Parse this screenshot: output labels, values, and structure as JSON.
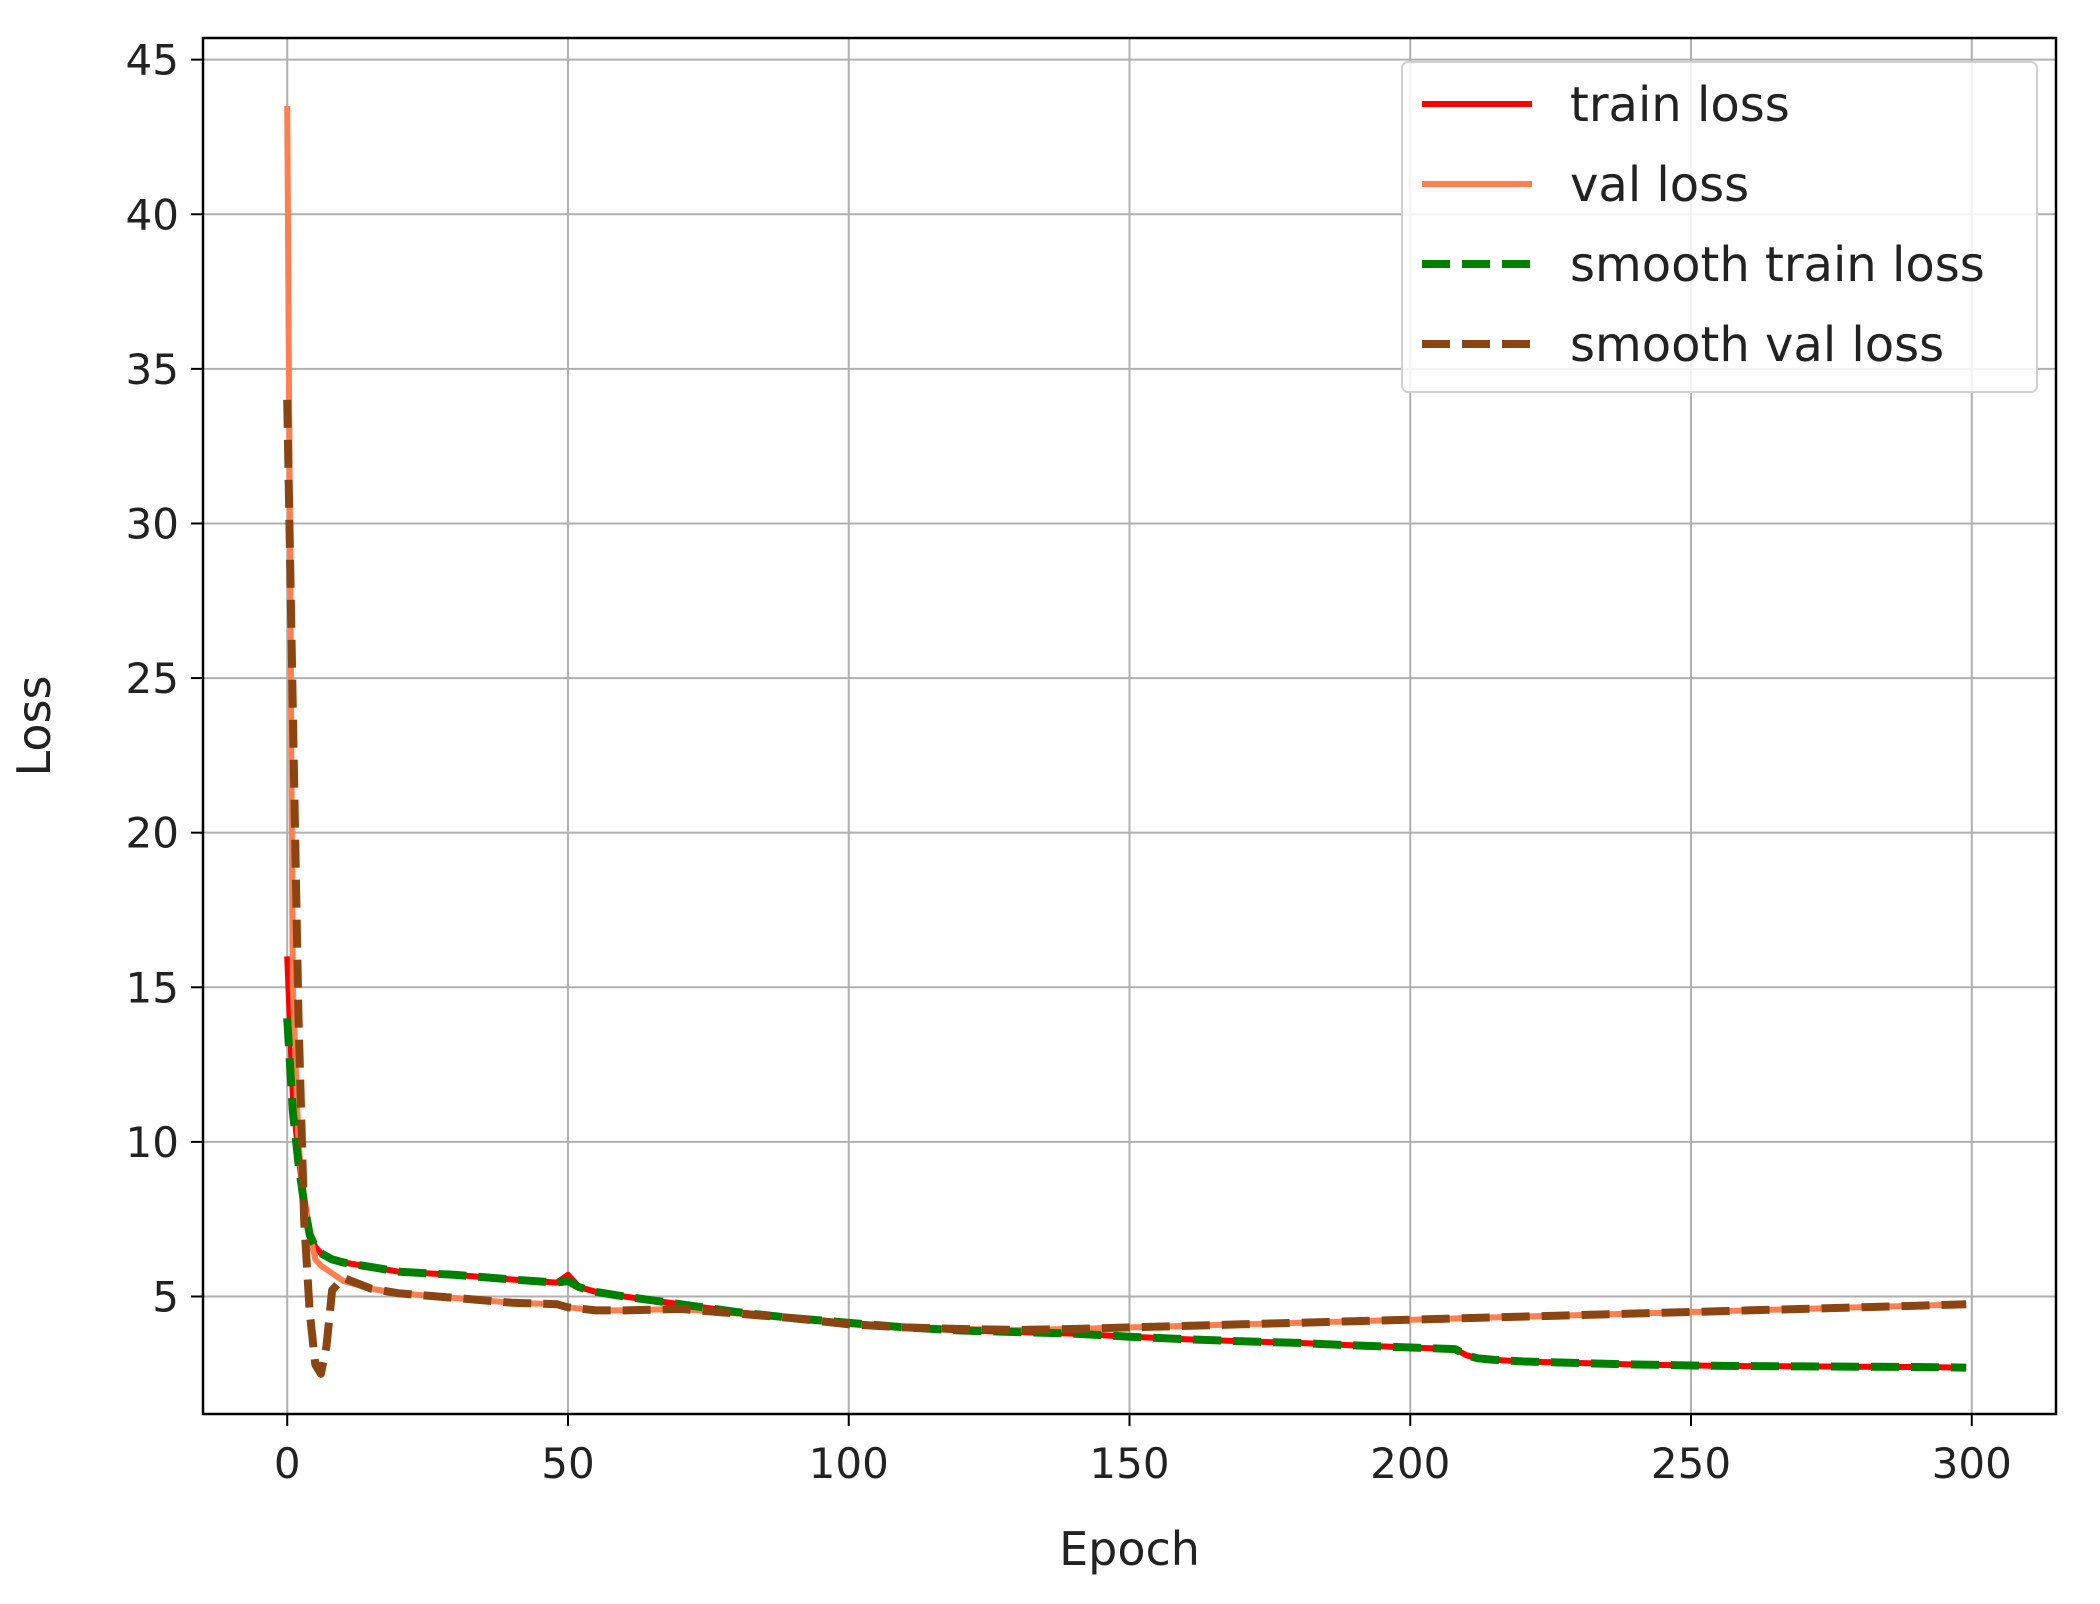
{
  "chart_data": {
    "type": "line",
    "title": "",
    "xlabel": "Epoch",
    "ylabel": "Loss",
    "xlim": [
      -15,
      315
    ],
    "ylim": [
      1.2,
      45.7
    ],
    "x_ticks": [
      0,
      50,
      100,
      150,
      200,
      250,
      300
    ],
    "y_ticks": [
      5,
      10,
      15,
      20,
      25,
      30,
      35,
      40,
      45
    ],
    "x_tick_labels": [
      "0",
      "50",
      "100",
      "150",
      "200",
      "250",
      "300"
    ],
    "y_tick_labels": [
      "5",
      "10",
      "15",
      "20",
      "25",
      "30",
      "35",
      "40",
      "45"
    ],
    "grid": true,
    "legend_position": "top-right",
    "series": [
      {
        "name": "train loss",
        "color": "#ff0000",
        "dash": "solid",
        "x": [
          0,
          1,
          2,
          3,
          4,
          5,
          6,
          8,
          10,
          15,
          20,
          30,
          40,
          48,
          50,
          52,
          55,
          60,
          70,
          80,
          90,
          100,
          110,
          120,
          130,
          140,
          150,
          160,
          170,
          180,
          190,
          200,
          208,
          210,
          212,
          215,
          220,
          230,
          240,
          250,
          260,
          270,
          280,
          290,
          299
        ],
        "y": [
          16,
          11.5,
          9.5,
          8.2,
          7.0,
          6.6,
          6.4,
          6.2,
          6.1,
          5.95,
          5.8,
          5.7,
          5.55,
          5.45,
          5.7,
          5.3,
          5.15,
          5.0,
          4.75,
          4.5,
          4.3,
          4.15,
          4.0,
          3.9,
          3.85,
          3.8,
          3.7,
          3.62,
          3.55,
          3.5,
          3.42,
          3.35,
          3.3,
          3.1,
          3.0,
          2.95,
          2.9,
          2.85,
          2.8,
          2.77,
          2.75,
          2.74,
          2.73,
          2.72,
          2.7
        ]
      },
      {
        "name": "val loss",
        "color": "#ff7f50",
        "dash": "solid",
        "x": [
          0,
          1,
          2,
          3,
          4,
          5,
          6,
          8,
          10,
          15,
          20,
          30,
          40,
          48,
          50,
          55,
          60,
          70,
          80,
          90,
          100,
          110,
          120,
          130,
          140,
          150,
          160,
          170,
          180,
          190,
          200,
          210,
          220,
          230,
          240,
          250,
          260,
          270,
          280,
          290,
          299
        ],
        "y": [
          43.5,
          15.0,
          10.0,
          8.0,
          7.0,
          6.2,
          6.0,
          5.75,
          5.5,
          5.25,
          5.1,
          4.95,
          4.8,
          4.75,
          4.65,
          4.55,
          4.55,
          4.6,
          4.45,
          4.3,
          4.1,
          4.0,
          3.95,
          3.92,
          3.95,
          4.0,
          4.05,
          4.1,
          4.15,
          4.2,
          4.25,
          4.3,
          4.35,
          4.4,
          4.45,
          4.5,
          4.55,
          4.6,
          4.65,
          4.7,
          4.75
        ]
      },
      {
        "name": "smooth train loss",
        "color": "#008000",
        "dash": "dashed",
        "x": [
          0,
          1,
          2,
          3,
          4,
          5,
          6,
          8,
          10,
          15,
          20,
          30,
          40,
          48,
          50,
          52,
          55,
          60,
          70,
          80,
          90,
          100,
          110,
          120,
          130,
          140,
          150,
          160,
          170,
          180,
          190,
          200,
          208,
          210,
          212,
          215,
          220,
          230,
          240,
          250,
          260,
          270,
          280,
          290,
          299
        ],
        "y": [
          14,
          11.0,
          9.3,
          8.0,
          7.0,
          6.6,
          6.4,
          6.2,
          6.1,
          5.95,
          5.8,
          5.7,
          5.55,
          5.45,
          5.5,
          5.3,
          5.15,
          5.0,
          4.75,
          4.5,
          4.3,
          4.15,
          4.0,
          3.9,
          3.85,
          3.8,
          3.7,
          3.62,
          3.55,
          3.5,
          3.42,
          3.35,
          3.3,
          3.1,
          3.0,
          2.95,
          2.9,
          2.85,
          2.8,
          2.77,
          2.75,
          2.74,
          2.73,
          2.72,
          2.7
        ]
      },
      {
        "name": "smooth val loss",
        "color": "#8b4513",
        "dash": "dashed",
        "x": [
          0,
          1,
          2,
          3,
          4,
          5,
          6,
          7,
          8,
          10,
          15,
          20,
          30,
          40,
          48,
          50,
          55,
          60,
          70,
          80,
          90,
          100,
          110,
          120,
          130,
          140,
          150,
          160,
          170,
          180,
          190,
          200,
          210,
          220,
          230,
          240,
          250,
          260,
          270,
          280,
          290,
          299
        ],
        "y": [
          34,
          24,
          14,
          7.5,
          4.5,
          2.8,
          2.5,
          3.4,
          5.2,
          5.6,
          5.25,
          5.1,
          4.95,
          4.8,
          4.75,
          4.65,
          4.55,
          4.55,
          4.6,
          4.45,
          4.3,
          4.1,
          4.0,
          3.95,
          3.92,
          3.95,
          4.0,
          4.05,
          4.1,
          4.15,
          4.2,
          4.25,
          4.3,
          4.35,
          4.4,
          4.45,
          4.5,
          4.55,
          4.6,
          4.65,
          4.7,
          4.75
        ]
      }
    ]
  }
}
